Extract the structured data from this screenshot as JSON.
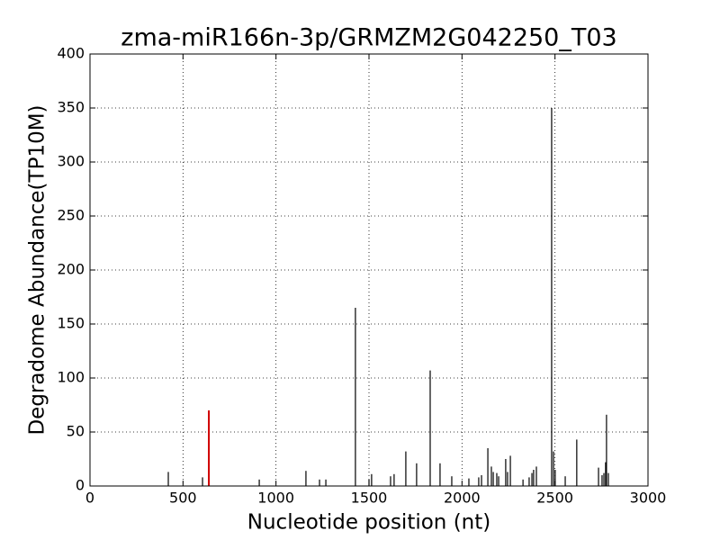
{
  "chart_data": {
    "type": "stem",
    "title": "zma-miR166n-3p/GRMZM2G042250_T03",
    "xlabel": "Nucleotide position (nt)",
    "ylabel": "Degradome Abundance(TP10M)",
    "xlim": [
      0,
      3000
    ],
    "xticks": [
      0,
      500,
      1000,
      1500,
      2000,
      2500,
      3000
    ],
    "ylim": [
      0,
      400
    ],
    "yticks": [
      0,
      50,
      100,
      150,
      200,
      250,
      300,
      350,
      400
    ],
    "grid": true,
    "series": [
      {
        "color": "#000000",
        "x": [
          421,
          605,
          910,
          1161,
          1234,
          1268,
          1427,
          1500,
          1514,
          1616,
          1635,
          1698,
          1756,
          1829,
          1882,
          1945,
          2037,
          2090,
          2105,
          2139,
          2158,
          2168,
          2187,
          2197,
          2235,
          2245,
          2260,
          2328,
          2361,
          2376,
          2385,
          2400,
          2482,
          2492,
          2501,
          2555,
          2617,
          2734,
          2753,
          2763,
          2772,
          2777,
          2787
        ],
        "values": [
          13,
          8,
          6,
          14,
          6,
          6,
          165,
          6,
          11,
          9,
          11,
          32,
          21,
          107,
          21,
          9,
          7,
          8,
          10,
          35,
          18,
          13,
          12,
          9,
          25,
          13,
          28,
          6,
          8,
          12,
          15,
          18,
          350,
          32,
          15,
          9,
          43,
          17,
          10,
          12,
          22,
          66,
          12
        ]
      },
      {
        "color": "#d00000",
        "x": [
          639
        ],
        "values": [
          70
        ]
      }
    ]
  }
}
